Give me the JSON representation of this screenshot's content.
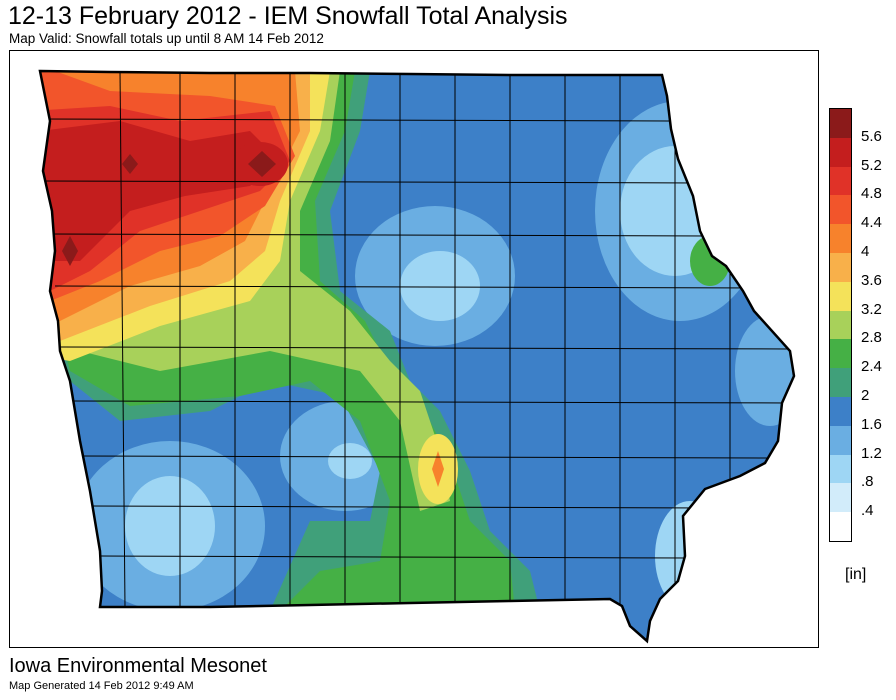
{
  "header": {
    "title": "12-13 February 2012 - IEM Snowfall Total Analysis",
    "subtitle": "Map Valid: Snowfall totals up until 8 AM 14 Feb 2012"
  },
  "footer": {
    "brand": "Iowa Environmental Mesonet",
    "generated": "Map Generated 14 Feb 2012 9:49 AM"
  },
  "legend": {
    "units": "[in]",
    "bins": [
      {
        "label": "5.6",
        "color": "#8b1a1a"
      },
      {
        "label": "5.2",
        "color": "#c41e1e"
      },
      {
        "label": "4.8",
        "color": "#e03228"
      },
      {
        "label": "4.4",
        "color": "#f2552b"
      },
      {
        "label": "4",
        "color": "#f7822c"
      },
      {
        "label": "3.6",
        "color": "#f8b04a"
      },
      {
        "label": "3.2",
        "color": "#f4e25a"
      },
      {
        "label": "2.8",
        "color": "#a8d15a"
      },
      {
        "label": "2.4",
        "color": "#45b045"
      },
      {
        "label": "2",
        "color": "#40a07a"
      },
      {
        "label": "1.6",
        "color": "#3d80c8"
      },
      {
        "label": "1.2",
        "color": "#6aaee2"
      },
      {
        "label": ".8",
        "color": "#9ed6f4"
      },
      {
        "label": ".4",
        "color": "#d2ecfa"
      },
      {
        "label": "",
        "color": "#ffffff"
      }
    ]
  }
}
